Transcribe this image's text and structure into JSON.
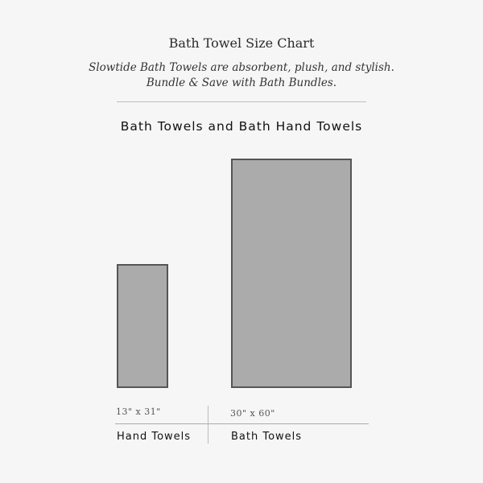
{
  "header": {
    "title": "Bath Towel Size Chart",
    "subtitle_line1": "Slowtide Bath Towels are absorbent, plush, and stylish.",
    "subtitle_line2": "Bundle & Save with Bath Bundles."
  },
  "section_heading": "Bath Towels and Bath Hand Towels",
  "colors": {
    "towel_fill": "#ababab",
    "towel_border": "#555555",
    "background": "#f6f6f6"
  },
  "towels": [
    {
      "label": "Hand Towels",
      "size": "13\" x 31\"",
      "width_in": 13,
      "length_in": 31
    },
    {
      "label": "Bath Towels",
      "size": "30\" x 60\"",
      "width_in": 30,
      "length_in": 60
    }
  ]
}
